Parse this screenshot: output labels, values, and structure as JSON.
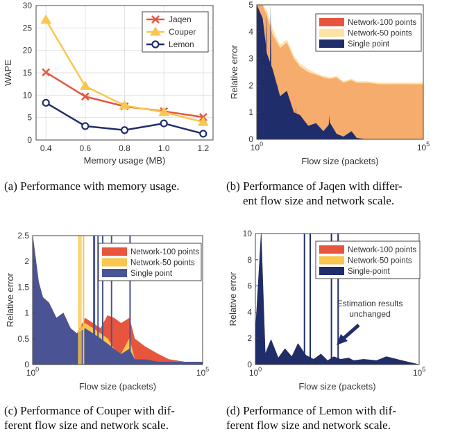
{
  "chart_data": [
    {
      "id": "a",
      "type": "line",
      "xlabel": "Memory usage (MB)",
      "ylabel": "WAPE",
      "xlim": [
        0.35,
        1.25
      ],
      "ylim": [
        0,
        30
      ],
      "xticks": [
        "0.4",
        "0.6",
        "0.8",
        "1.0",
        "1.2"
      ],
      "yticks": [
        "0",
        "5",
        "10",
        "15",
        "20",
        "25",
        "30"
      ],
      "grid": true,
      "legend_position": "top-right",
      "x": [
        0.4,
        0.6,
        0.8,
        1.0,
        1.2
      ],
      "series": [
        {
          "name": "Jaqen",
          "color": "#e8553d",
          "marker": "x",
          "values": [
            15.1,
            9.7,
            7.5,
            6.4,
            5.1
          ]
        },
        {
          "name": "Couper",
          "color": "#f9c74f",
          "marker": "triangle",
          "values": [
            26.8,
            12.0,
            7.7,
            6.2,
            4.0
          ]
        },
        {
          "name": "Lemon",
          "color": "#1f2d6b",
          "marker": "circle",
          "values": [
            8.3,
            3.1,
            2.2,
            3.7,
            1.4
          ]
        }
      ],
      "caption": "(a) Performance with memory usage."
    },
    {
      "id": "b",
      "type": "area",
      "xlabel": "Flow size (packets)",
      "ylabel": "Relative error",
      "xscale": "log",
      "xlim": [
        1,
        100000
      ],
      "ylim": [
        0,
        5
      ],
      "xticks": [
        "10^0",
        "10^5"
      ],
      "yticks": [
        "0",
        "1",
        "2",
        "3",
        "4",
        "5"
      ],
      "legend_position": "top-right",
      "x": [
        1,
        1.5,
        2,
        3,
        5,
        8,
        13,
        20,
        35,
        60,
        100,
        160,
        250,
        400,
        700,
        1000,
        2000,
        5000,
        10000,
        30000,
        100000
      ],
      "series": [
        {
          "name": "Network-100 points",
          "color": "#e8553d",
          "values": [
            5.0,
            5.0,
            4.6,
            3.9,
            3.4,
            3.6,
            3.0,
            2.7,
            2.5,
            2.4,
            2.3,
            2.25,
            2.3,
            2.1,
            2.2,
            2.1,
            2.1,
            2.05,
            2.05,
            2.05,
            2.05
          ]
        },
        {
          "name": "Network-50 points",
          "color": "#fde3a7",
          "values": [
            5.0,
            5.0,
            4.8,
            4.1,
            3.5,
            3.7,
            3.1,
            2.8,
            2.6,
            2.45,
            2.35,
            2.3,
            2.35,
            2.15,
            2.25,
            2.15,
            2.15,
            2.1,
            2.1,
            2.1,
            2.1
          ]
        },
        {
          "name": "Single point",
          "color": "#1f2d6b",
          "values": [
            5.0,
            4.5,
            3.2,
            2.6,
            1.6,
            1.8,
            1.0,
            0.9,
            0.5,
            0.6,
            0.3,
            0.6,
            0.2,
            0.1,
            0.3,
            0.05,
            0.0,
            0.0,
            0.0,
            0.0,
            0.0
          ]
        }
      ],
      "caption_line1": "(b) Performance of Jaqen with differ-",
      "caption_line2": "ent flow size and network scale."
    },
    {
      "id": "c",
      "type": "area",
      "xlabel": "Flow size (packets)",
      "ylabel": "Relative error",
      "xscale": "log",
      "xlim": [
        1,
        100000
      ],
      "ylim": [
        0,
        2.5
      ],
      "xticks": [
        "10^0",
        "10^5"
      ],
      "yticks": [
        "0",
        "0.5",
        "1",
        "1.5",
        "2",
        "2.5"
      ],
      "legend_position": "top-right",
      "x": [
        1,
        1.5,
        2,
        3,
        5,
        8,
        13,
        20,
        35,
        60,
        100,
        160,
        250,
        400,
        700,
        1000,
        2000,
        5000,
        10000,
        30000,
        100000
      ],
      "series": [
        {
          "name": "Network-100 points",
          "color": "#e8553d",
          "values": [
            2.5,
            1.6,
            1.3,
            1.2,
            0.9,
            1.0,
            0.7,
            0.6,
            0.9,
            0.8,
            0.7,
            0.95,
            0.9,
            0.8,
            0.9,
            0.5,
            0.35,
            0.2,
            0.1,
            0.05,
            0.05
          ]
        },
        {
          "name": "Network-50 points",
          "color": "#f9c74f",
          "values": [
            2.5,
            1.6,
            1.3,
            1.2,
            0.9,
            1.0,
            0.7,
            0.6,
            0.8,
            0.7,
            0.6,
            0.5,
            0.3,
            0.2,
            0.5,
            0.1,
            0.1,
            0.05,
            0.05,
            0.05,
            0.05
          ]
        },
        {
          "name": "Single point",
          "color": "#4a5494",
          "values": [
            2.5,
            1.6,
            1.3,
            1.2,
            0.9,
            1.0,
            0.7,
            0.6,
            0.7,
            0.6,
            0.5,
            0.4,
            0.3,
            0.2,
            0.3,
            0.1,
            0.1,
            0.05,
            0.05,
            0.05,
            0.05
          ]
        }
      ],
      "caption_line1": "(c) Performance of Couper with dif-",
      "caption_line2": "ferent flow size and network scale."
    },
    {
      "id": "d",
      "type": "area",
      "xlabel": "Flow size (packets)",
      "ylabel": "Relative error",
      "xscale": "log",
      "xlim": [
        1,
        100000
      ],
      "ylim": [
        0,
        10
      ],
      "xticks": [
        "10^0",
        "10^5"
      ],
      "yticks": [
        "0",
        "2",
        "4",
        "6",
        "8",
        "10"
      ],
      "legend_position": "top-right",
      "annotation": {
        "line1": "Estimation results",
        "line2": "unchanged"
      },
      "x": [
        1,
        1.5,
        2,
        3,
        5,
        8,
        13,
        20,
        35,
        60,
        100,
        160,
        250,
        400,
        700,
        1000,
        2000,
        5000,
        10000,
        30000,
        100000
      ],
      "series": [
        {
          "name": "Network-100 points",
          "color": "#e8553d",
          "values": [
            2.4,
            10.0,
            0.8,
            1.9,
            0.5,
            1.2,
            0.6,
            1.6,
            0.7,
            0.4,
            0.8,
            0.3,
            0.6,
            0.4,
            0.5,
            0.3,
            0.4,
            0.3,
            0.6,
            0.3,
            0.0
          ]
        },
        {
          "name": "Network-50 points",
          "color": "#f9c74f",
          "values": [
            2.4,
            10.0,
            0.8,
            1.9,
            0.5,
            1.2,
            0.6,
            1.6,
            0.7,
            0.4,
            0.8,
            0.3,
            0.6,
            0.4,
            0.5,
            0.3,
            0.4,
            0.3,
            0.6,
            0.3,
            0.0
          ]
        },
        {
          "name": "Single-point",
          "color": "#1f2d6b",
          "values": [
            2.4,
            10.0,
            0.8,
            1.9,
            0.5,
            1.2,
            0.6,
            1.6,
            0.7,
            0.4,
            0.8,
            0.3,
            0.6,
            0.4,
            0.5,
            0.3,
            0.4,
            0.3,
            0.6,
            0.3,
            0.0
          ]
        }
      ],
      "caption_line1": "(d) Performance of Lemon with dif-",
      "caption_line2": "ferent flow size and network scale."
    }
  ]
}
